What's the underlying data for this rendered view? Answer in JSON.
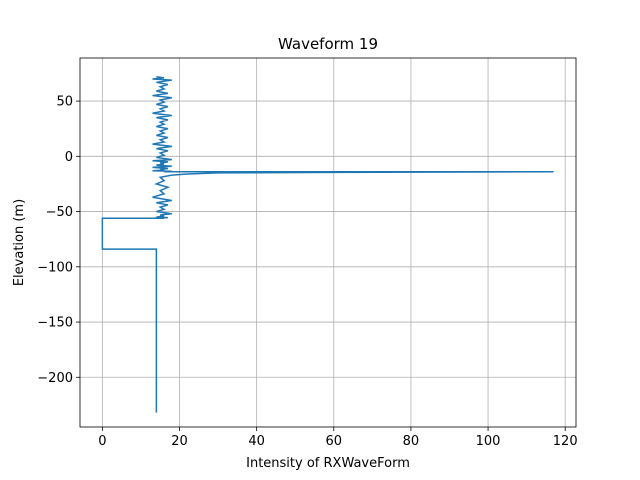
{
  "chart_data": {
    "type": "line",
    "title": "Waveform 19",
    "xlabel": "Intensity of RXWaveForm",
    "ylabel": "Elevation (m)",
    "xlim": [
      -5.8,
      122.8
    ],
    "ylim": [
      -245,
      89
    ],
    "xticks": [
      0,
      20,
      40,
      60,
      80,
      100,
      120
    ],
    "yticks": [
      -200,
      -150,
      -100,
      -50,
      0,
      50
    ],
    "xtick_labels": [
      "0",
      "20",
      "40",
      "60",
      "80",
      "100",
      "120"
    ],
    "ytick_labels": [
      "−200",
      "−150",
      "−100",
      "−50",
      "0",
      "50"
    ],
    "grid": true,
    "series": [
      {
        "color": "#1f77b4",
        "x": [
          14,
          16,
          13,
          18,
          14,
          17,
          15,
          16,
          14,
          17,
          13,
          18,
          15,
          16,
          14,
          17,
          15,
          16,
          13,
          18,
          14,
          17,
          15,
          16,
          14,
          17,
          15,
          16,
          14,
          17,
          15,
          16,
          13,
          18,
          14,
          17,
          15,
          16,
          14,
          18,
          13,
          17,
          15,
          16,
          14,
          18,
          13,
          17,
          15,
          16,
          13,
          18,
          16,
          20,
          30,
          60,
          117,
          60,
          30,
          22,
          18,
          15,
          16,
          14,
          17,
          15,
          16,
          13,
          18,
          14,
          17,
          15,
          16,
          14,
          18,
          15,
          16,
          14,
          17,
          13,
          16,
          15,
          14,
          0,
          0,
          14,
          14,
          14
        ],
        "y": [
          72,
          71,
          70,
          69,
          67,
          65,
          63,
          61,
          59,
          57,
          55,
          53,
          51,
          49,
          47,
          45,
          43,
          41,
          39,
          37,
          35,
          33,
          31,
          29,
          27,
          25,
          23,
          21,
          19,
          17,
          15,
          13,
          11,
          9,
          7,
          5,
          3,
          1,
          -1,
          -3,
          -4,
          -5,
          -6,
          -7,
          -8,
          -9,
          -10,
          -11,
          -12,
          -12.5,
          -13,
          -13.5,
          -14,
          -14,
          -14,
          -14,
          -14,
          -14.5,
          -15,
          -16,
          -17,
          -19,
          -22,
          -25,
          -28,
          -31,
          -34,
          -37,
          -40,
          -42,
          -44,
          -46,
          -48,
          -50,
          -52,
          -53,
          -54,
          -55,
          -55.5,
          -56,
          -56,
          -56,
          -56,
          -56,
          -84,
          -84,
          -84,
          -232
        ]
      }
    ]
  }
}
